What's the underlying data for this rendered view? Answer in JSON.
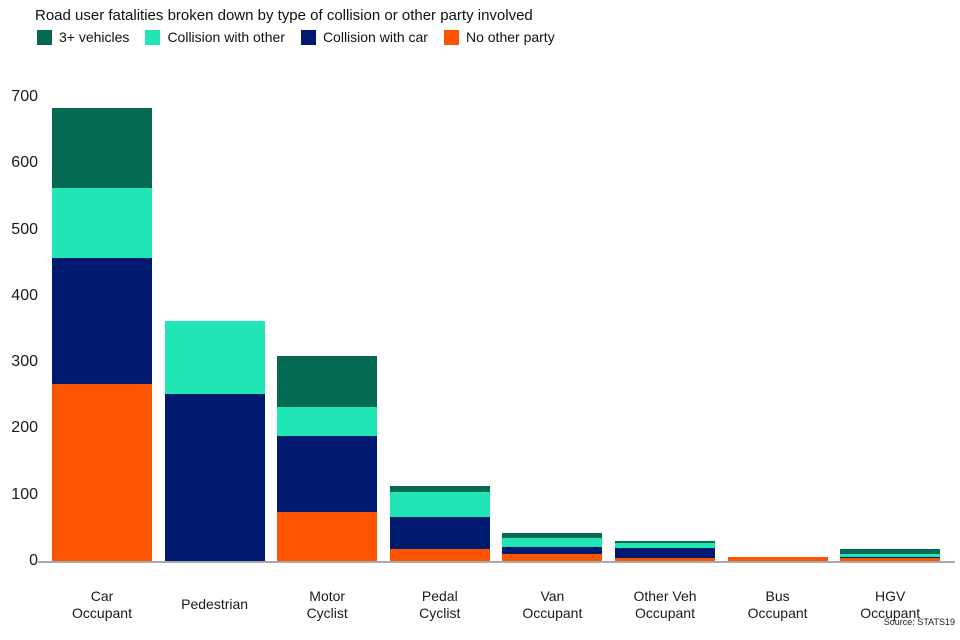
{
  "colors": {
    "green": "#046A52",
    "mint": "#21E5B4",
    "navy": "#001A70",
    "orange": "#FC5400",
    "axis": "#A9A9A9",
    "text": "#1A1A1A"
  },
  "source": "Source: STATS19",
  "chart_data": {
    "type": "bar",
    "stacked": true,
    "title": "Road user fatalities broken down by type of collision or other party involved",
    "xlabel": "",
    "ylabel": "",
    "ylim": [
      0,
      700
    ],
    "yticks": [
      0,
      100,
      200,
      300,
      400,
      500,
      600,
      700
    ],
    "grid": false,
    "legend_position": "top-left",
    "categories": [
      "Car Occupant",
      "Pedestrian",
      "Motor Cyclist",
      "Pedal Cyclist",
      "Van Occupant",
      "Other Veh Occupant",
      "Bus Occupant",
      "HGV Occupant"
    ],
    "category_label_lines": [
      [
        "Car",
        "Occupant"
      ],
      [
        "Pedestrian"
      ],
      [
        "Motor",
        "Cyclist"
      ],
      [
        "Pedal",
        "Cyclist"
      ],
      [
        "Van",
        "Occupant"
      ],
      [
        "Other Veh",
        "Occupant"
      ],
      [
        "Bus",
        "Occupant"
      ],
      [
        "HGV",
        "Occupant"
      ]
    ],
    "series": [
      {
        "name": "No other party",
        "color": "#FC5400",
        "values": [
          267,
          0,
          74,
          18,
          10,
          5,
          6,
          4
        ]
      },
      {
        "name": "Collision with car",
        "color": "#001A70",
        "values": [
          190,
          252,
          115,
          49,
          11,
          15,
          0,
          2
        ]
      },
      {
        "name": "Collision with other",
        "color": "#21E5B4",
        "values": [
          106,
          110,
          44,
          37,
          14,
          7,
          0,
          5
        ]
      },
      {
        "name": "3+ vehicles",
        "color": "#046A52",
        "values": [
          120,
          0,
          77,
          9,
          7,
          3,
          0,
          7
        ]
      }
    ],
    "totals": [
      683,
      362,
      310,
      113,
      42,
      30,
      6,
      18
    ],
    "legend": [
      {
        "label": "3+ vehicles",
        "color": "#046A52"
      },
      {
        "label": "Collision with other",
        "color": "#21E5B4"
      },
      {
        "label": "Collision with car",
        "color": "#001A70"
      },
      {
        "label": "No other party",
        "color": "#FC5400"
      }
    ]
  }
}
